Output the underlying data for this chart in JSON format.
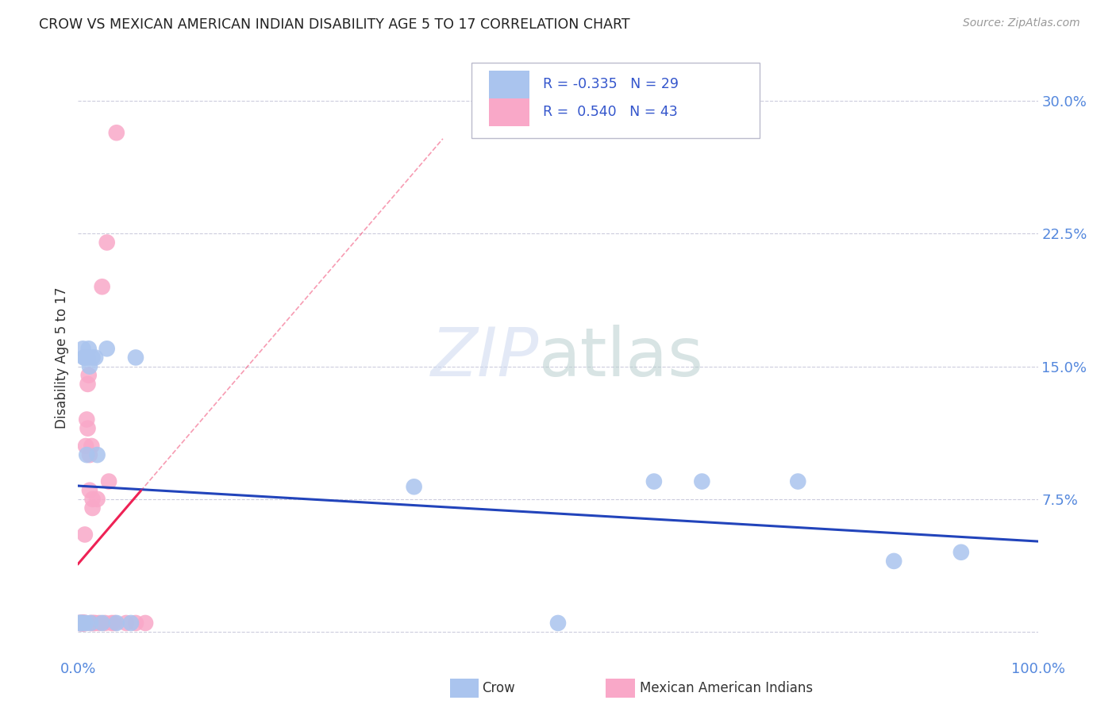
{
  "title": "CROW VS MEXICAN AMERICAN INDIAN DISABILITY AGE 5 TO 17 CORRELATION CHART",
  "source": "Source: ZipAtlas.com",
  "ylabel": "Disability Age 5 to 17",
  "xlim": [
    0.0,
    1.0
  ],
  "ylim": [
    -0.015,
    0.325
  ],
  "ytick_vals": [
    0.0,
    0.075,
    0.15,
    0.225,
    0.3
  ],
  "ytick_labels": [
    "",
    "7.5%",
    "15.0%",
    "22.5%",
    "30.0%"
  ],
  "xtick_vals": [
    0.0,
    1.0
  ],
  "xtick_labels": [
    "0.0%",
    "100.0%"
  ],
  "background_color": "#ffffff",
  "grid_color": "#ccccdd",
  "crow_color": "#aac4ee",
  "mexican_color": "#f9a8c8",
  "crow_line_color": "#2244bb",
  "mexican_line_color": "#ee2255",
  "legend_crow_label": "Crow",
  "legend_mexican_label": "Mexican American Indians",
  "crow_R": -0.335,
  "crow_N": 29,
  "mexican_R": 0.54,
  "mexican_N": 43,
  "crow_x": [
    0.001,
    0.002,
    0.003,
    0.004,
    0.005,
    0.005,
    0.006,
    0.007,
    0.008,
    0.009,
    0.01,
    0.011,
    0.012,
    0.013,
    0.015,
    0.018,
    0.02,
    0.025,
    0.03,
    0.04,
    0.055,
    0.06,
    0.35,
    0.5,
    0.6,
    0.65,
    0.75,
    0.85,
    0.92
  ],
  "crow_y": [
    0.005,
    0.005,
    0.005,
    0.005,
    0.005,
    0.16,
    0.155,
    0.155,
    0.005,
    0.1,
    0.155,
    0.16,
    0.15,
    0.005,
    0.155,
    0.155,
    0.1,
    0.005,
    0.16,
    0.005,
    0.005,
    0.155,
    0.082,
    0.005,
    0.085,
    0.085,
    0.085,
    0.04,
    0.045
  ],
  "mexican_x": [
    0.001,
    0.002,
    0.003,
    0.003,
    0.004,
    0.004,
    0.005,
    0.005,
    0.005,
    0.005,
    0.005,
    0.006,
    0.006,
    0.007,
    0.007,
    0.007,
    0.008,
    0.008,
    0.009,
    0.01,
    0.01,
    0.011,
    0.012,
    0.012,
    0.013,
    0.014,
    0.015,
    0.015,
    0.015,
    0.016,
    0.018,
    0.02,
    0.022,
    0.025,
    0.028,
    0.03,
    0.032,
    0.035,
    0.038,
    0.04,
    0.05,
    0.06,
    0.07
  ],
  "mexican_y": [
    0.005,
    0.005,
    0.005,
    0.005,
    0.005,
    0.005,
    0.005,
    0.005,
    0.005,
    0.005,
    0.005,
    0.005,
    0.005,
    0.005,
    0.005,
    0.055,
    0.005,
    0.105,
    0.12,
    0.115,
    0.14,
    0.145,
    0.1,
    0.08,
    0.005,
    0.105,
    0.07,
    0.005,
    0.075,
    0.005,
    0.005,
    0.075,
    0.005,
    0.195,
    0.005,
    0.22,
    0.085,
    0.005,
    0.005,
    0.282,
    0.005,
    0.005,
    0.005
  ]
}
